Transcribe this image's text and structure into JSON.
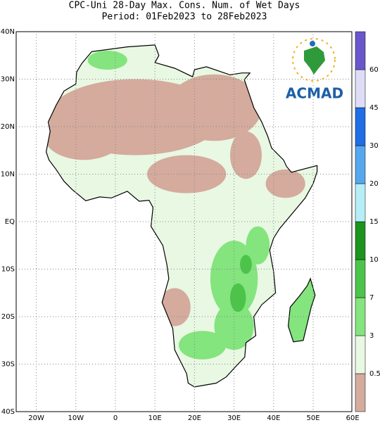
{
  "title": {
    "line1": "CPC-Uni 28-Day Max. Cons. Num. of Wet Days",
    "line2": "Period: 01Feb2023 to 28Feb2023"
  },
  "map": {
    "lat_labels": [
      "40N",
      "30N",
      "20N",
      "10N",
      "EQ",
      "10S",
      "20S",
      "30S",
      "40S"
    ],
    "lon_labels": [
      "20W",
      "10W",
      "0",
      "10E",
      "20E",
      "30E",
      "40E",
      "50E",
      "60E"
    ]
  },
  "legend": {
    "labels": [
      "0.5",
      "3",
      "7",
      "10",
      "15",
      "20",
      "30",
      "45",
      "60"
    ],
    "colors": [
      "#d4ab9d",
      "#e8f8e2",
      "#84e47e",
      "#4cc44a",
      "#1d941d",
      "#b6eef8",
      "#56a8ee",
      "#1f6ee6",
      "#dedcf6",
      "#b2a8ee",
      "#6a56cc"
    ]
  },
  "logo": {
    "text": "ACMAD"
  }
}
